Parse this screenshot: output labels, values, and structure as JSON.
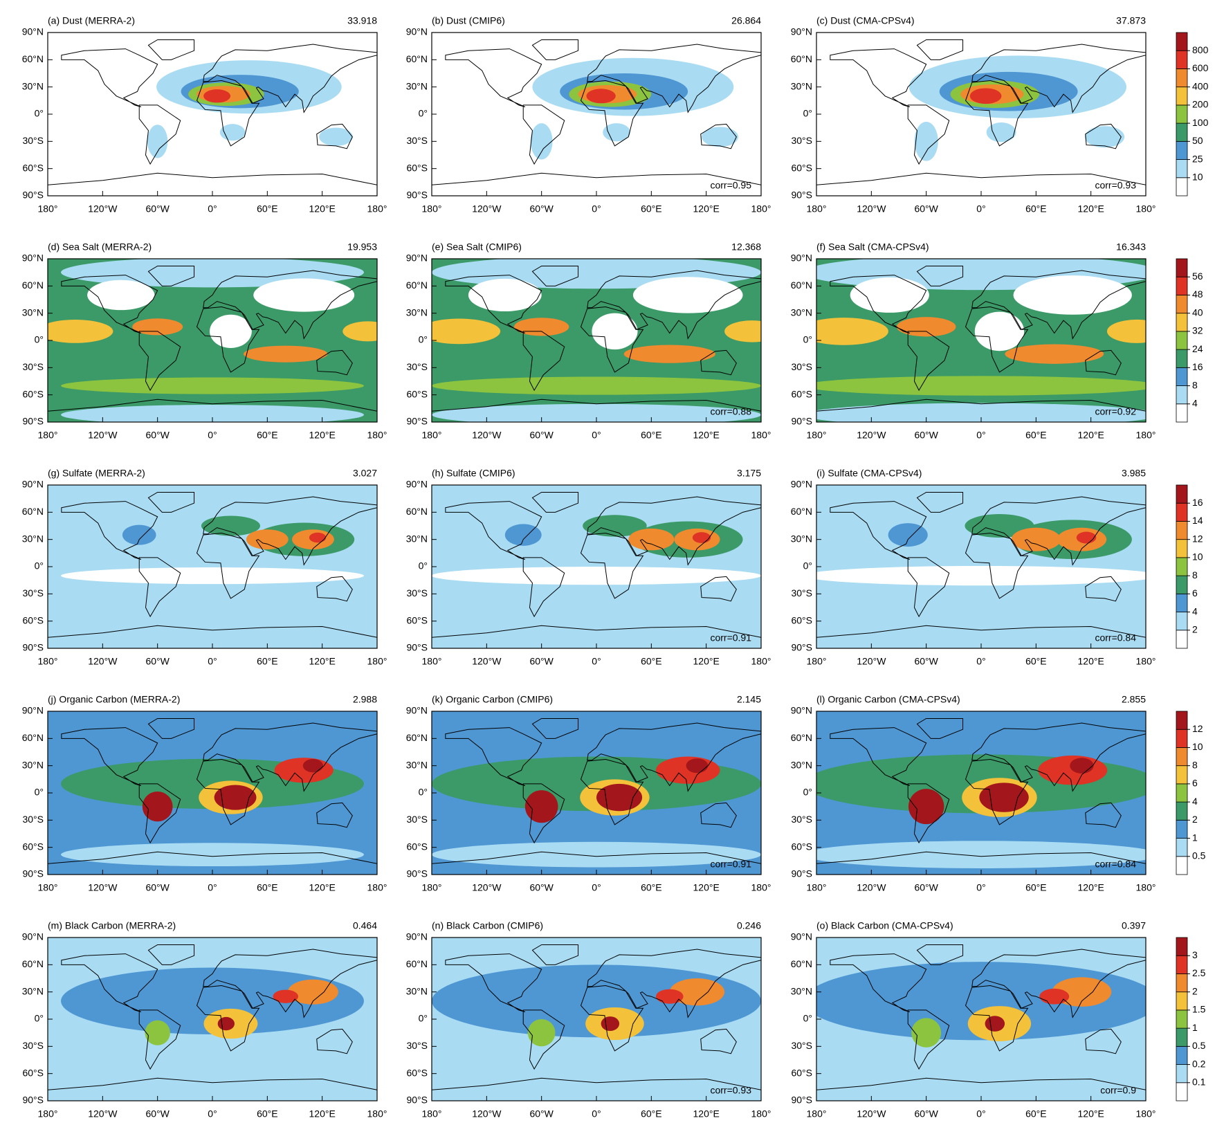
{
  "panels": [
    {
      "title": "(a) Dust (MERRA-2)",
      "mean": 33.918
    },
    {
      "title": "(b) Dust (CMIP6)",
      "mean": 26.864,
      "corr": "corr=0.95"
    },
    {
      "title": "(c) Dust (CMA-CPSv4)",
      "mean": 37.873,
      "corr": "corr=0.93"
    },
    {
      "title": "(d) Sea Salt (MERRA-2)",
      "mean": 19.953
    },
    {
      "title": "(e) Sea Salt (CMIP6)",
      "mean": 12.368,
      "corr": "corr=0.88"
    },
    {
      "title": "(f) Sea Salt (CMA-CPSv4)",
      "mean": 16.343,
      "corr": "corr=0.92"
    },
    {
      "title": "(g) Sulfate (MERRA-2)",
      "mean": 3.027
    },
    {
      "title": "(h) Sulfate (CMIP6)",
      "mean": 3.175,
      "corr": "corr=0.91"
    },
    {
      "title": "(i) Sulfate (CMA-CPSv4)",
      "mean": 3.985,
      "corr": "corr=0.84"
    },
    {
      "title": "(j) Organic Carbon (MERRA-2)",
      "mean": 2.988
    },
    {
      "title": "(k) Organic Carbon (CMIP6)",
      "mean": 2.145,
      "corr": "corr=0.91"
    },
    {
      "title": "(l) Organic Carbon (CMA-CPSv4)",
      "mean": 2.855,
      "corr": "corr=0.84"
    },
    {
      "title": "(m) Black Carbon (MERRA-2)",
      "mean": 0.464
    },
    {
      "title": "(n) Black Carbon (CMIP6)",
      "mean": 0.246,
      "corr": "corr=0.93"
    },
    {
      "title": "(o) Black Carbon (CMA-CPSv4)",
      "mean": 0.397,
      "corr": "corr=0.9"
    }
  ],
  "xticks": [
    {
      "value": -180,
      "label": "180°"
    },
    {
      "value": -120,
      "label": "120°W"
    },
    {
      "value": -60,
      "label": "60°W"
    },
    {
      "value": 0,
      "label": "0°"
    },
    {
      "value": 60,
      "label": "60°E"
    },
    {
      "value": 120,
      "label": "120°E"
    },
    {
      "value": 180,
      "label": "180°"
    }
  ],
  "yticks": [
    {
      "value": 90,
      "label": "90°N"
    },
    {
      "value": 60,
      "label": "60°N"
    },
    {
      "value": 30,
      "label": "30°N"
    },
    {
      "value": 0,
      "label": "0°"
    },
    {
      "value": -30,
      "label": "30°S"
    },
    {
      "value": -60,
      "label": "60°S"
    },
    {
      "value": -90,
      "label": "90°S"
    }
  ],
  "colors": [
    "#ffffff",
    "#a9dcf3",
    "#4f97d3",
    "#3b9a67",
    "#8dc43f",
    "#f3c13a",
    "#ef8a2f",
    "#de3325",
    "#a3161b"
  ],
  "colorbars": [
    {
      "levels": [
        10,
        25,
        50,
        100,
        200,
        400,
        600,
        800
      ]
    },
    {
      "levels": [
        4,
        8,
        16,
        24,
        32,
        40,
        48,
        56
      ]
    },
    {
      "levels": [
        2,
        4,
        6,
        8,
        10,
        12,
        14,
        16
      ]
    },
    {
      "levels": [
        0.5,
        1,
        2,
        4,
        6,
        8,
        10,
        12
      ]
    },
    {
      "levels": [
        0.1,
        0.2,
        0.5,
        1,
        1.5,
        2,
        2.5,
        3
      ]
    }
  ]
}
